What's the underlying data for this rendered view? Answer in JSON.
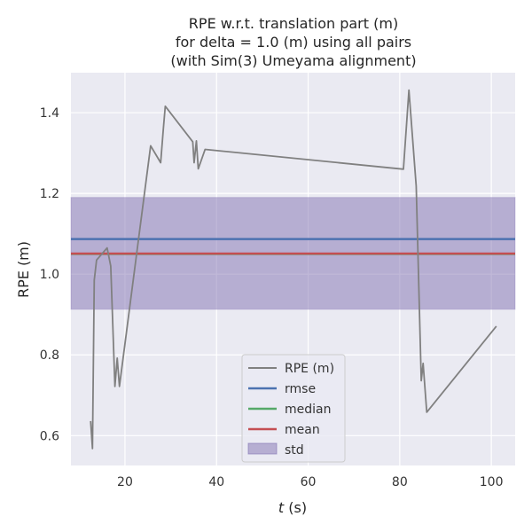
{
  "chart_data": {
    "type": "line",
    "title_lines": [
      "RPE w.r.t. translation part (m)",
      "for delta = 1.0 (m) using all pairs",
      "(with Sim(3) Umeyama alignment)"
    ],
    "xlabel_italic": "t",
    "xlabel_rest": " (s)",
    "ylabel": "RPE (m)",
    "xlim": [
      8.2,
      105.2
    ],
    "ylim": [
      0.526,
      1.499
    ],
    "x_ticks": [
      20,
      40,
      60,
      80,
      100
    ],
    "y_ticks": [
      0.6,
      0.8,
      1.0,
      1.2,
      1.4
    ],
    "x_tick_labels": [
      "20",
      "40",
      "60",
      "80",
      "100"
    ],
    "y_tick_labels": [
      "0.6",
      "0.8",
      "1.0",
      "1.2",
      "1.4"
    ],
    "grid": true,
    "legend_placement": "lower-center",
    "series": [
      {
        "name": "RPE (m)",
        "color": "#808080",
        "points": [
          [
            12.5,
            0.636
          ],
          [
            12.9,
            0.568
          ],
          [
            13.3,
            0.985
          ],
          [
            13.8,
            1.035
          ],
          [
            16.1,
            1.065
          ],
          [
            16.9,
            1.02
          ],
          [
            17.8,
            0.722
          ],
          [
            18.3,
            0.792
          ],
          [
            18.8,
            0.722
          ],
          [
            25.6,
            1.318
          ],
          [
            27.8,
            1.276
          ],
          [
            28.4,
            1.362
          ],
          [
            28.8,
            1.416
          ],
          [
            34.8,
            1.328
          ],
          [
            35.1,
            1.276
          ],
          [
            35.6,
            1.33
          ],
          [
            36.0,
            1.261
          ],
          [
            37.5,
            1.309
          ],
          [
            80.8,
            1.26
          ],
          [
            82.0,
            1.456
          ],
          [
            83.6,
            1.218
          ],
          [
            84.7,
            0.736
          ],
          [
            85.1,
            0.779
          ],
          [
            85.9,
            0.658
          ],
          [
            101.1,
            0.871
          ]
        ]
      },
      {
        "name": "rmse",
        "color": "#4c72b0",
        "value": 1.087
      },
      {
        "name": "median",
        "color": "#55a868",
        "value": 1.05
      },
      {
        "name": "mean",
        "color": "#c44e52",
        "value": 1.051
      },
      {
        "name": "std",
        "color": "#8172b2",
        "range": [
          0.913,
          1.19
        ]
      }
    ]
  }
}
